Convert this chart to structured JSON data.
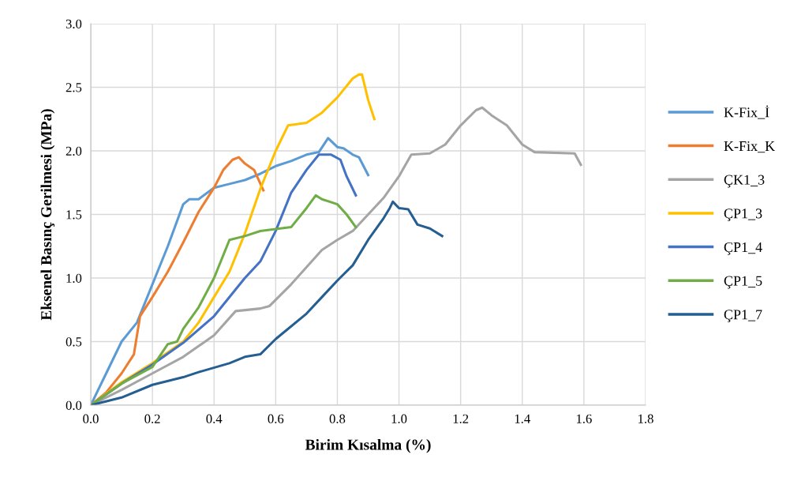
{
  "chart_data": {
    "type": "line",
    "xlabel": "Birim Kısalma (%)",
    "ylabel": "Eksenel Basınç Gerilmesi (MPa)",
    "xlim": [
      0,
      1.8
    ],
    "xticks": [
      {
        "value": 0,
        "label": "0.0"
      },
      0.2,
      0.4,
      0.6,
      0.8,
      {
        "value": 1,
        "label": "1.0"
      },
      1.2,
      1.4,
      1.6,
      1.8
    ],
    "ylim": [
      0,
      3
    ],
    "yticks": [
      {
        "value": 0,
        "label": "0.0"
      },
      0.5,
      {
        "value": 1,
        "label": "1.0"
      },
      1.5,
      {
        "value": 2,
        "label": "2.0"
      },
      2.5,
      {
        "value": 3,
        "label": "3.0"
      }
    ],
    "grid": true,
    "legend": "right",
    "marker": "none",
    "line_style": "solid",
    "series": [
      {
        "name": "K-Fix_İ",
        "color": "#5b9bd5",
        "x": [
          0,
          0.02,
          0.05,
          0.1,
          0.15,
          0.2,
          0.25,
          0.3,
          0.32,
          0.35,
          0.4,
          0.45,
          0.5,
          0.55,
          0.6,
          0.65,
          0.7,
          0.74,
          0.77,
          0.8,
          0.82,
          0.85,
          0.87,
          0.9
        ],
        "values": [
          0,
          0.1,
          0.25,
          0.5,
          0.65,
          0.95,
          1.25,
          1.58,
          1.62,
          1.62,
          1.71,
          1.74,
          1.77,
          1.82,
          1.88,
          1.92,
          1.97,
          1.99,
          2.1,
          2.03,
          2.02,
          1.97,
          1.95,
          1.81
        ]
      },
      {
        "name": "K-Fix_K",
        "color": "#ed7d31",
        "x": [
          0,
          0.05,
          0.1,
          0.14,
          0.16,
          0.2,
          0.25,
          0.3,
          0.35,
          0.4,
          0.43,
          0.46,
          0.48,
          0.5,
          0.53,
          0.56
        ],
        "values": [
          0,
          0.1,
          0.25,
          0.4,
          0.7,
          0.85,
          1.05,
          1.28,
          1.52,
          1.71,
          1.85,
          1.93,
          1.95,
          1.9,
          1.85,
          1.69
        ]
      },
      {
        "name": "ÇK1_3",
        "color": "#a5a5a5",
        "x": [
          0,
          0.1,
          0.2,
          0.3,
          0.4,
          0.47,
          0.55,
          0.58,
          0.65,
          0.75,
          0.8,
          0.85,
          0.9,
          0.95,
          1.0,
          1.04,
          1.1,
          1.15,
          1.2,
          1.25,
          1.27,
          1.3,
          1.35,
          1.4,
          1.44,
          1.57,
          1.59
        ],
        "values": [
          0,
          0.12,
          0.25,
          0.38,
          0.55,
          0.74,
          0.76,
          0.78,
          0.95,
          1.22,
          1.3,
          1.37,
          1.5,
          1.63,
          1.8,
          1.97,
          1.98,
          2.05,
          2.2,
          2.32,
          2.34,
          2.28,
          2.2,
          2.05,
          1.99,
          1.98,
          1.89
        ]
      },
      {
        "name": "ÇP1_3",
        "color": "#ffc000",
        "x": [
          0,
          0.1,
          0.2,
          0.3,
          0.35,
          0.4,
          0.45,
          0.5,
          0.55,
          0.6,
          0.64,
          0.7,
          0.75,
          0.8,
          0.85,
          0.87,
          0.88,
          0.9,
          0.92
        ],
        "values": [
          0,
          0.18,
          0.33,
          0.5,
          0.65,
          0.85,
          1.05,
          1.35,
          1.7,
          2.0,
          2.2,
          2.22,
          2.3,
          2.42,
          2.57,
          2.6,
          2.6,
          2.4,
          2.25
        ]
      },
      {
        "name": "ÇP1_4",
        "color": "#4472c4",
        "x": [
          0,
          0.1,
          0.2,
          0.3,
          0.4,
          0.5,
          0.55,
          0.6,
          0.65,
          0.7,
          0.74,
          0.78,
          0.81,
          0.83,
          0.86
        ],
        "values": [
          0,
          0.17,
          0.32,
          0.49,
          0.7,
          1.0,
          1.13,
          1.37,
          1.67,
          1.85,
          1.97,
          1.97,
          1.93,
          1.8,
          1.65
        ]
      },
      {
        "name": "ÇP1_5",
        "color": "#70ad47",
        "x": [
          0,
          0.1,
          0.2,
          0.25,
          0.28,
          0.3,
          0.35,
          0.4,
          0.45,
          0.5,
          0.55,
          0.65,
          0.7,
          0.73,
          0.75,
          0.8,
          0.83,
          0.86
        ],
        "values": [
          0,
          0.17,
          0.3,
          0.48,
          0.5,
          0.6,
          0.77,
          1.0,
          1.3,
          1.33,
          1.37,
          1.4,
          1.55,
          1.65,
          1.62,
          1.58,
          1.5,
          1.4
        ]
      },
      {
        "name": "ÇP1_7",
        "color": "#255e91",
        "x": [
          0,
          0.1,
          0.2,
          0.3,
          0.35,
          0.45,
          0.5,
          0.55,
          0.6,
          0.7,
          0.75,
          0.8,
          0.85,
          0.9,
          0.95,
          0.97,
          0.98,
          1.0,
          1.03,
          1.06,
          1.1,
          1.14
        ],
        "values": [
          0,
          0.06,
          0.16,
          0.22,
          0.26,
          0.33,
          0.38,
          0.4,
          0.52,
          0.72,
          0.85,
          0.98,
          1.1,
          1.3,
          1.47,
          1.55,
          1.6,
          1.55,
          1.54,
          1.42,
          1.39,
          1.33
        ]
      }
    ]
  }
}
